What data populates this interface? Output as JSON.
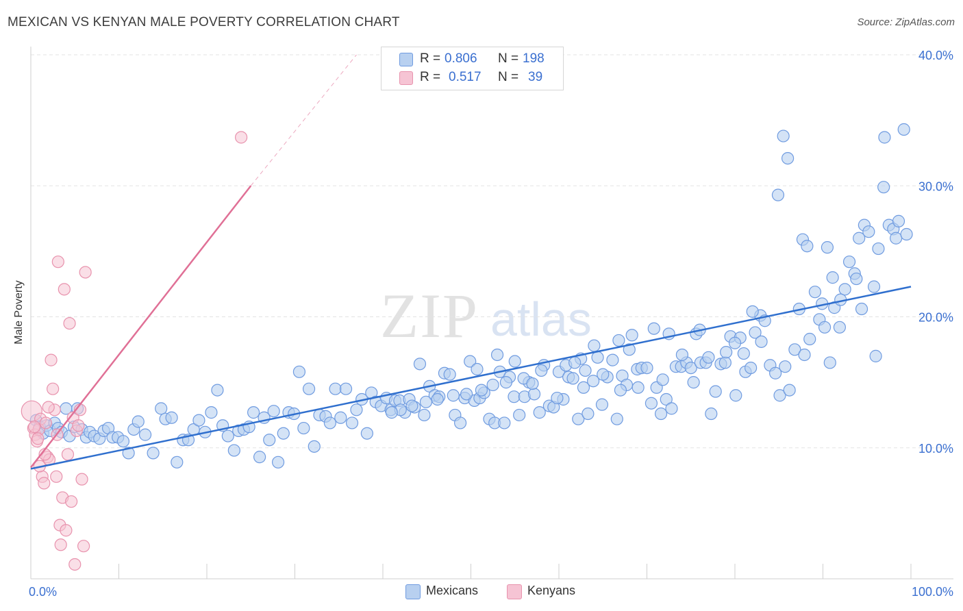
{
  "title": "MEXICAN VS KENYAN MALE POVERTY CORRELATION CHART",
  "source": "Source: ZipAtlas.com",
  "watermark": {
    "zip": "ZIP",
    "atlas": "atlas"
  },
  "legend_top": {
    "rows": [
      {
        "r_label": "R =",
        "r_value": "0.806",
        "n_label": "N =",
        "n_value": "198"
      },
      {
        "r_label": "R =",
        "r_value": "0.517",
        "n_label": "N =",
        "n_value": "39"
      }
    ]
  },
  "legend_bottom": {
    "mexicans": "Mexicans",
    "kenyans": "Kenyans"
  },
  "colors": {
    "blue_fill": "#b8d0f0",
    "blue_stroke": "#6f9be0",
    "blue_line": "#2f6fce",
    "pink_fill": "#f6c4d4",
    "pink_stroke": "#e892ad",
    "pink_line": "#e07096",
    "tick_label": "#3a6fd0",
    "grid": "#e3e3e3"
  },
  "chart_data": {
    "type": "scatter",
    "title": "MEXICAN VS KENYAN MALE POVERTY CORRELATION CHART",
    "xlabel": "",
    "ylabel": "Male Poverty",
    "xlim": [
      0,
      100
    ],
    "ylim": [
      0,
      40
    ],
    "grid": true,
    "x_tick_labels": [
      "0.0%",
      "100.0%"
    ],
    "y_tick_labels": [
      "10.0%",
      "20.0%",
      "30.0%",
      "40.0%"
    ],
    "y_ticks": [
      10,
      20,
      30,
      40
    ],
    "legend_position": "top-center",
    "series": [
      {
        "name": "Mexicans",
        "r": 0.806,
        "n": 198,
        "trendline": {
          "x": [
            0,
            100
          ],
          "y": [
            8.4,
            22.3
          ]
        },
        "points": [
          [
            0.6,
            12.1
          ],
          [
            1.0,
            11.6
          ],
          [
            1.4,
            11.1
          ],
          [
            1.8,
            11.7
          ],
          [
            2.2,
            11.3
          ],
          [
            2.7,
            11.9
          ],
          [
            3.1,
            11.5
          ],
          [
            3.5,
            11.2
          ],
          [
            4.0,
            13.0
          ],
          [
            4.4,
            10.9
          ],
          [
            4.9,
            11.6
          ],
          [
            5.3,
            13.0
          ],
          [
            5.8,
            11.4
          ],
          [
            6.3,
            10.8
          ],
          [
            6.7,
            11.2
          ],
          [
            7.2,
            10.9
          ],
          [
            7.8,
            10.7
          ],
          [
            8.3,
            11.3
          ],
          [
            8.8,
            11.5
          ],
          [
            9.3,
            10.8
          ],
          [
            9.9,
            10.8
          ],
          [
            10.5,
            10.5
          ],
          [
            11.1,
            9.6
          ],
          [
            11.7,
            11.4
          ],
          [
            12.2,
            12.0
          ],
          [
            13.0,
            11.0
          ],
          [
            13.9,
            9.6
          ],
          [
            14.8,
            13.0
          ],
          [
            15.3,
            12.2
          ],
          [
            16.0,
            12.3
          ],
          [
            16.6,
            8.9
          ],
          [
            17.3,
            10.6
          ],
          [
            17.9,
            10.6
          ],
          [
            18.5,
            11.4
          ],
          [
            19.1,
            12.1
          ],
          [
            19.8,
            11.2
          ],
          [
            20.5,
            12.7
          ],
          [
            21.2,
            14.4
          ],
          [
            21.8,
            11.7
          ],
          [
            22.4,
            10.9
          ],
          [
            23.1,
            9.8
          ],
          [
            23.6,
            11.3
          ],
          [
            24.2,
            11.4
          ],
          [
            24.8,
            11.6
          ],
          [
            25.3,
            12.7
          ],
          [
            26.0,
            9.3
          ],
          [
            26.5,
            12.3
          ],
          [
            27.1,
            10.6
          ],
          [
            27.6,
            12.8
          ],
          [
            28.1,
            8.9
          ],
          [
            28.7,
            11.1
          ],
          [
            29.3,
            12.7
          ],
          [
            29.9,
            12.6
          ],
          [
            30.5,
            15.8
          ],
          [
            31.0,
            11.5
          ],
          [
            31.6,
            14.5
          ],
          [
            32.2,
            10.1
          ],
          [
            32.8,
            12.5
          ],
          [
            33.5,
            12.4
          ],
          [
            34.0,
            11.9
          ],
          [
            34.6,
            14.5
          ],
          [
            35.2,
            12.3
          ],
          [
            35.8,
            14.5
          ],
          [
            36.5,
            11.9
          ],
          [
            37.0,
            12.9
          ],
          [
            37.6,
            13.7
          ],
          [
            38.2,
            11.1
          ],
          [
            38.7,
            14.2
          ],
          [
            39.2,
            13.5
          ],
          [
            39.8,
            13.2
          ],
          [
            40.4,
            13.8
          ],
          [
            40.9,
            12.9
          ],
          [
            41.4,
            13.6
          ],
          [
            41.9,
            13.6
          ],
          [
            42.5,
            12.7
          ],
          [
            43.0,
            13.7
          ],
          [
            43.6,
            13.1
          ],
          [
            44.2,
            16.4
          ],
          [
            44.7,
            12.5
          ],
          [
            45.3,
            14.7
          ],
          [
            45.9,
            14.0
          ],
          [
            46.4,
            13.9
          ],
          [
            47.0,
            15.7
          ],
          [
            47.6,
            15.6
          ],
          [
            48.2,
            12.5
          ],
          [
            48.8,
            11.9
          ],
          [
            49.3,
            13.8
          ],
          [
            49.9,
            16.6
          ],
          [
            50.4,
            13.6
          ],
          [
            51.0,
            13.8
          ],
          [
            51.5,
            14.2
          ],
          [
            52.1,
            12.2
          ],
          [
            52.7,
            11.9
          ],
          [
            53.3,
            15.8
          ],
          [
            53.8,
            11.9
          ],
          [
            54.4,
            15.4
          ],
          [
            54.9,
            13.9
          ],
          [
            55.5,
            12.5
          ],
          [
            56.1,
            13.9
          ],
          [
            56.6,
            15.0
          ],
          [
            57.2,
            14.1
          ],
          [
            57.8,
            12.7
          ],
          [
            58.3,
            16.3
          ],
          [
            58.9,
            13.2
          ],
          [
            59.4,
            13.1
          ],
          [
            60.0,
            15.8
          ],
          [
            60.5,
            13.7
          ],
          [
            61.1,
            15.4
          ],
          [
            61.6,
            15.3
          ],
          [
            62.2,
            12.2
          ],
          [
            62.8,
            14.6
          ],
          [
            63.3,
            12.6
          ],
          [
            63.9,
            15.1
          ],
          [
            64.4,
            16.9
          ],
          [
            64.9,
            13.3
          ],
          [
            65.5,
            15.4
          ],
          [
            66.1,
            16.7
          ],
          [
            66.6,
            12.2
          ],
          [
            67.2,
            15.5
          ],
          [
            67.7,
            14.8
          ],
          [
            68.3,
            18.6
          ],
          [
            68.9,
            16.0
          ],
          [
            69.4,
            16.1
          ],
          [
            70.0,
            16.1
          ],
          [
            70.5,
            13.4
          ],
          [
            71.1,
            14.6
          ],
          [
            71.6,
            12.6
          ],
          [
            72.2,
            13.7
          ],
          [
            72.8,
            13.0
          ],
          [
            73.3,
            16.2
          ],
          [
            73.9,
            16.2
          ],
          [
            74.5,
            16.5
          ],
          [
            75.0,
            16.1
          ],
          [
            75.6,
            18.7
          ],
          [
            76.1,
            16.5
          ],
          [
            76.7,
            16.5
          ],
          [
            77.3,
            12.6
          ],
          [
            77.8,
            14.3
          ],
          [
            78.4,
            16.4
          ],
          [
            78.9,
            16.5
          ],
          [
            79.5,
            18.5
          ],
          [
            80.1,
            14.0
          ],
          [
            80.6,
            18.4
          ],
          [
            81.2,
            15.8
          ],
          [
            81.8,
            16.1
          ],
          [
            82.3,
            18.8
          ],
          [
            82.9,
            20.1
          ],
          [
            83.4,
            19.7
          ],
          [
            84.0,
            16.3
          ],
          [
            84.6,
            15.7
          ],
          [
            85.1,
            14.0
          ],
          [
            85.7,
            16.2
          ],
          [
            86.2,
            14.4
          ],
          [
            86.8,
            17.5
          ],
          [
            87.3,
            20.6
          ],
          [
            87.9,
            17.1
          ],
          [
            88.5,
            18.3
          ],
          [
            89.1,
            21.9
          ],
          [
            89.6,
            19.8
          ],
          [
            90.2,
            19.2
          ],
          [
            90.8,
            16.5
          ],
          [
            91.3,
            20.7
          ],
          [
            91.9,
            19.2
          ],
          [
            92.5,
            22.1
          ],
          [
            93.0,
            24.2
          ],
          [
            93.6,
            23.3
          ],
          [
            94.1,
            26.0
          ],
          [
            94.7,
            27.0
          ],
          [
            95.2,
            26.5
          ],
          [
            95.8,
            22.3
          ],
          [
            96.3,
            25.2
          ],
          [
            96.9,
            29.9
          ],
          [
            97.5,
            27.0
          ],
          [
            98.0,
            26.7
          ],
          [
            98.6,
            27.3
          ],
          [
            99.2,
            34.3
          ],
          [
            85.5,
            33.8
          ],
          [
            86.0,
            32.1
          ],
          [
            84.9,
            29.3
          ],
          [
            87.7,
            25.9
          ],
          [
            88.2,
            25.4
          ],
          [
            90.5,
            25.3
          ],
          [
            91.1,
            23.0
          ],
          [
            92.0,
            21.3
          ],
          [
            93.8,
            22.9
          ],
          [
            96.0,
            17.0
          ],
          [
            94.4,
            20.6
          ],
          [
            89.9,
            21.0
          ],
          [
            82.0,
            20.4
          ],
          [
            80.0,
            18.0
          ],
          [
            76.0,
            19.0
          ],
          [
            72.5,
            18.7
          ],
          [
            70.8,
            19.1
          ],
          [
            68.0,
            17.5
          ],
          [
            66.8,
            18.2
          ],
          [
            64.0,
            17.8
          ],
          [
            62.5,
            16.8
          ],
          [
            60.8,
            16.3
          ],
          [
            58.0,
            15.9
          ],
          [
            56.0,
            15.3
          ],
          [
            54.0,
            15.0
          ],
          [
            52.5,
            14.8
          ],
          [
            51.2,
            14.4
          ],
          [
            49.5,
            14.1
          ],
          [
            48.0,
            14.0
          ],
          [
            46.2,
            13.7
          ],
          [
            44.9,
            13.5
          ],
          [
            43.3,
            13.2
          ],
          [
            42.0,
            12.9
          ],
          [
            41.0,
            12.7
          ],
          [
            97.0,
            33.7
          ],
          [
            98.3,
            26.0
          ],
          [
            99.5,
            26.3
          ],
          [
            50.7,
            16.0
          ],
          [
            53.0,
            17.1
          ],
          [
            55.0,
            16.6
          ],
          [
            57.0,
            14.9
          ],
          [
            59.8,
            13.8
          ],
          [
            61.8,
            16.5
          ],
          [
            63.0,
            15.9
          ],
          [
            65.0,
            15.6
          ],
          [
            67.0,
            14.4
          ],
          [
            69.0,
            14.6
          ],
          [
            71.8,
            15.2
          ],
          [
            74.0,
            17.1
          ],
          [
            75.3,
            15.0
          ],
          [
            77.0,
            16.9
          ],
          [
            79.0,
            17.3
          ],
          [
            81.0,
            17.2
          ],
          [
            83.0,
            18.1
          ]
        ]
      },
      {
        "name": "Kenyans",
        "r": 0.517,
        "n": 39,
        "trendline": {
          "x": [
            0,
            25.0,
            37.0
          ],
          "y": [
            8.5,
            30.0,
            40.0
          ]
        },
        "points": [
          [
            0.1,
            12.8
          ],
          [
            0.3,
            11.5
          ],
          [
            0.5,
            11.0
          ],
          [
            0.7,
            10.5
          ],
          [
            0.9,
            11.4
          ],
          [
            1.1,
            12.2
          ],
          [
            1.3,
            7.8
          ],
          [
            1.5,
            7.3
          ],
          [
            1.7,
            11.9
          ],
          [
            1.9,
            9.3
          ],
          [
            2.1,
            9.1
          ],
          [
            2.3,
            16.7
          ],
          [
            2.5,
            14.5
          ],
          [
            2.7,
            12.9
          ],
          [
            2.9,
            7.8
          ],
          [
            3.1,
            24.2
          ],
          [
            3.3,
            4.1
          ],
          [
            3.4,
            2.6
          ],
          [
            3.6,
            6.2
          ],
          [
            3.8,
            22.1
          ],
          [
            4.0,
            3.7
          ],
          [
            4.2,
            9.5
          ],
          [
            4.4,
            19.5
          ],
          [
            4.6,
            5.9
          ],
          [
            4.8,
            12.3
          ],
          [
            5.0,
            1.1
          ],
          [
            5.2,
            11.3
          ],
          [
            5.4,
            11.7
          ],
          [
            5.6,
            12.9
          ],
          [
            5.8,
            7.6
          ],
          [
            6.0,
            2.5
          ],
          [
            6.2,
            23.4
          ],
          [
            1.0,
            8.6
          ],
          [
            2.0,
            13.1
          ],
          [
            0.8,
            10.7
          ],
          [
            1.6,
            9.5
          ],
          [
            0.4,
            11.6
          ],
          [
            3.0,
            11.0
          ],
          [
            23.9,
            33.7
          ]
        ]
      }
    ]
  }
}
